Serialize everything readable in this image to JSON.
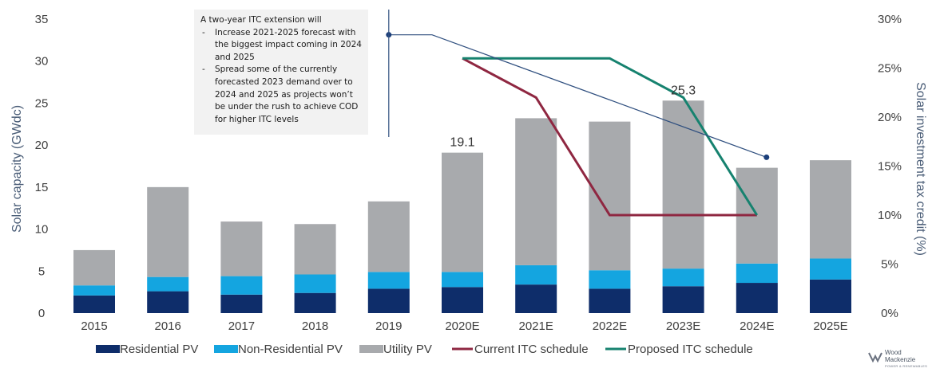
{
  "chart_data": {
    "type": "bar",
    "stacked": true,
    "categories": [
      "2015",
      "2016",
      "2017",
      "2018",
      "2019",
      "2020E",
      "2021E",
      "2022E",
      "2023E",
      "2024E",
      "2025E"
    ],
    "series": [
      {
        "name": "Residential PV",
        "color": "#0e2d6a",
        "values": [
          2.1,
          2.6,
          2.2,
          2.4,
          2.9,
          3.1,
          3.4,
          2.9,
          3.2,
          3.6,
          4.0
        ]
      },
      {
        "name": "Non-Residential PV",
        "color": "#14a5e0",
        "values": [
          1.2,
          1.7,
          2.2,
          2.2,
          2.0,
          1.8,
          2.3,
          2.2,
          2.1,
          2.3,
          2.5
        ]
      },
      {
        "name": "Utility PV",
        "color": "#a8aaad",
        "values": [
          4.2,
          10.7,
          6.5,
          6.0,
          8.4,
          14.2,
          17.5,
          17.7,
          20.0,
          11.4,
          11.7
        ]
      }
    ],
    "lines": [
      {
        "name": "Current ITC schedule",
        "color": "#8f2741",
        "axis": "right",
        "x": [
          "2020E",
          "2021E",
          "2022E",
          "2023E",
          "2024E"
        ],
        "values": [
          26,
          22,
          10,
          10,
          10
        ]
      },
      {
        "name": "Proposed ITC schedule",
        "color": "#16826f",
        "axis": "right",
        "x": [
          "2020E",
          "2021E",
          "2022E",
          "2023E",
          "2024E"
        ],
        "values": [
          26,
          26,
          26,
          22,
          10
        ]
      }
    ],
    "annotation_arrow": {
      "color": "#2f4f7f",
      "start": {
        "x": "2019",
        "y": 28.4
      },
      "via": {
        "x": "2020E",
        "y": 28.4
      },
      "end": {
        "x": "2024E",
        "y": 15.9
      }
    },
    "data_labels": [
      {
        "x": "2020E",
        "text": "19.1"
      },
      {
        "x": "2023E",
        "text": "25.3"
      }
    ],
    "ylabel": "Solar capacity (GWdc)",
    "ylabel_right": "Solar investment tax credit (%)",
    "ylim": [
      0,
      35
    ],
    "yticks": [
      "0",
      "5",
      "10",
      "15",
      "20",
      "25",
      "30",
      "35"
    ],
    "ylim_right": [
      0,
      30
    ],
    "yticks_right": [
      "0%",
      "5%",
      "10%",
      "15%",
      "20%",
      "25%",
      "30%"
    ],
    "grid": false,
    "legend_position": "bottom"
  },
  "annotation": {
    "title": "A two-year ITC extension will",
    "bullets": [
      "Increase 2021-2025 forecast with the biggest impact coming in 2024 and 2025",
      "Spread some of the currently forecasted 2023 demand over to 2024 and 2025 as projects won’t be under the rush to achieve COD for higher ITC levels"
    ]
  },
  "logo": {
    "line1": "Wood",
    "line2": "Mackenzie",
    "line3": "POWER & RENEWABLES"
  }
}
